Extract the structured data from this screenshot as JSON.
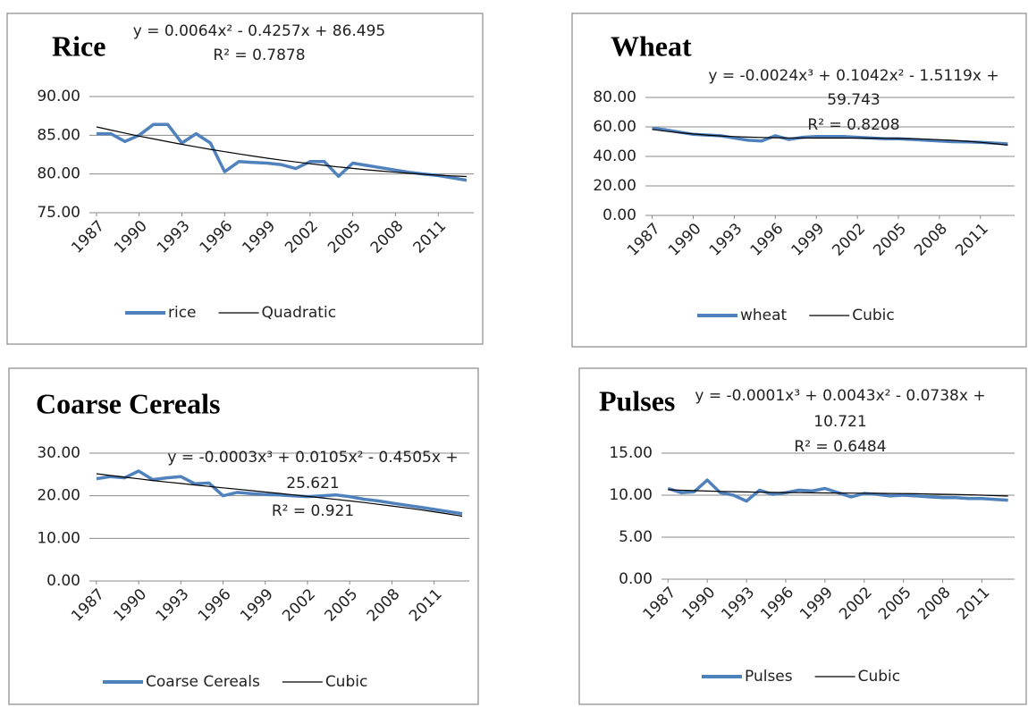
{
  "chart_data": [
    {
      "type": "line",
      "title": "Rice",
      "annotations": [
        "y = 0.0064x² - 0.4257x + 86.495",
        "R² = 0.7878"
      ],
      "x": [
        1987,
        1988,
        1989,
        1990,
        1991,
        1992,
        1993,
        1994,
        1995,
        1996,
        1997,
        1998,
        1999,
        2000,
        2001,
        2002,
        2003,
        2004,
        2005,
        2006,
        2007,
        2008,
        2009,
        2010,
        2011,
        2012,
        2013
      ],
      "xlim": [
        1986.5,
        2013.5
      ],
      "xticks": [
        1987,
        1990,
        1993,
        1996,
        1999,
        2002,
        2005,
        2008,
        2011
      ],
      "ylim": [
        75,
        90
      ],
      "yticks": [
        {
          "value": 75,
          "label": "75.00"
        },
        {
          "value": 80,
          "label": "80.00"
        },
        {
          "value": 85,
          "label": "85.00"
        },
        {
          "value": 90,
          "label": "90.00"
        }
      ],
      "grid": true,
      "series": [
        {
          "name": "rice",
          "color": "#4f81bd",
          "values": [
            85.2,
            85.2,
            84.2,
            85.0,
            86.4,
            86.4,
            84.0,
            85.2,
            84.0,
            80.3,
            81.6,
            81.5,
            81.4,
            81.2,
            80.7,
            81.6,
            81.6,
            79.7,
            81.4,
            81.1,
            80.8,
            80.5,
            80.2,
            80.0,
            79.8,
            79.5,
            79.2
          ]
        },
        {
          "name": "Quadratic",
          "color": "#000000",
          "values": [
            86.08,
            85.67,
            85.28,
            84.89,
            84.53,
            84.17,
            83.83,
            83.5,
            83.18,
            82.88,
            82.59,
            82.31,
            82.04,
            81.79,
            81.55,
            81.32,
            81.11,
            80.91,
            80.72,
            80.54,
            80.38,
            80.23,
            80.09,
            79.96,
            79.85,
            79.75,
            79.67
          ]
        }
      ]
    },
    {
      "type": "line",
      "title": "Wheat",
      "annotations": [
        "y = -0.0024x³ + 0.1042x² - 1.5119x +",
        "59.743",
        "R² = 0.8208"
      ],
      "x": [
        1987,
        1988,
        1989,
        1990,
        1991,
        1992,
        1993,
        1994,
        1995,
        1996,
        1997,
        1998,
        1999,
        2000,
        2001,
        2002,
        2003,
        2004,
        2005,
        2006,
        2007,
        2008,
        2009,
        2010,
        2011,
        2012,
        2013
      ],
      "xlim": [
        1986.5,
        2013.5
      ],
      "xticks": [
        1987,
        1990,
        1993,
        1996,
        1999,
        2002,
        2005,
        2008,
        2011
      ],
      "ylim": [
        0,
        80
      ],
      "yticks": [
        {
          "value": 0,
          "label": "0.00"
        },
        {
          "value": 20,
          "label": "20.00"
        },
        {
          "value": 40,
          "label": "40.00"
        },
        {
          "value": 60,
          "label": "60.00"
        },
        {
          "value": 80,
          "label": "80.00"
        }
      ],
      "grid": true,
      "series": [
        {
          "name": "wheat",
          "color": "#4f81bd",
          "values": [
            59,
            58,
            56.5,
            55,
            54.5,
            54,
            52.5,
            51,
            50.5,
            54,
            51.5,
            53,
            53.5,
            53.5,
            53.5,
            53,
            52.5,
            52,
            52,
            51.5,
            51,
            50.5,
            50,
            49.8,
            49.5,
            49,
            48.5
          ]
        },
        {
          "name": "Cubic",
          "color": "#000000",
          "values": [
            58.33,
            57.12,
            56.08,
            55.21,
            54.49,
            53.9,
            53.44,
            53.09,
            52.83,
            52.64,
            52.53,
            52.46,
            52.43,
            52.41,
            52.41,
            52.4,
            52.36,
            52.29,
            52.17,
            51.98,
            51.72,
            51.36,
            50.89,
            50.3,
            49.57,
            48.69,
            47.64
          ]
        }
      ]
    },
    {
      "type": "line",
      "title": "Coarse Cereals",
      "annotations": [
        "y = -0.0003x³ + 0.0105x² - 0.4505x +",
        "25.621",
        "R² = 0.921"
      ],
      "x": [
        1987,
        1988,
        1989,
        1990,
        1991,
        1992,
        1993,
        1994,
        1995,
        1996,
        1997,
        1998,
        1999,
        2000,
        2001,
        2002,
        2003,
        2004,
        2005,
        2006,
        2007,
        2008,
        2009,
        2010,
        2011,
        2012,
        2013
      ],
      "xlim": [
        1986.5,
        2013.5
      ],
      "xticks": [
        1987,
        1990,
        1993,
        1996,
        1999,
        2002,
        2005,
        2008,
        2011
      ],
      "ylim": [
        0,
        30
      ],
      "yticks": [
        {
          "value": 0,
          "label": "0.00"
        },
        {
          "value": 10,
          "label": "10.00"
        },
        {
          "value": 20,
          "label": "20.00"
        },
        {
          "value": 30,
          "label": "30.00"
        }
      ],
      "grid": true,
      "series": [
        {
          "name": "Coarse Cereals",
          "color": "#4f81bd",
          "values": [
            24,
            24.5,
            24.2,
            25.8,
            23.8,
            24.2,
            24.5,
            22.8,
            23,
            20,
            20.8,
            20.5,
            20.3,
            20.2,
            20,
            19.8,
            20,
            20.2,
            19.8,
            19.2,
            18.8,
            18.3,
            17.8,
            17.3,
            16.8,
            16.3,
            15.8
          ]
        },
        {
          "name": "Cubic",
          "color": "#000000",
          "values": [
            25.18,
            24.76,
            24.36,
            23.97,
            23.59,
            23.23,
            22.88,
            22.54,
            22.2,
            21.87,
            21.54,
            21.21,
            20.88,
            20.55,
            20.21,
            19.87,
            19.52,
            19.16,
            18.79,
            18.41,
            18.01,
            17.6,
            17.16,
            16.71,
            16.23,
            15.73,
            15.21
          ]
        }
      ]
    },
    {
      "type": "line",
      "title": "Pulses",
      "annotations": [
        "y = -0.0001x³ + 0.0043x² - 0.0738x +",
        "10.721",
        "R² = 0.6484"
      ],
      "x": [
        1987,
        1988,
        1989,
        1990,
        1991,
        1992,
        1993,
        1994,
        1995,
        1996,
        1997,
        1998,
        1999,
        2000,
        2001,
        2002,
        2003,
        2004,
        2005,
        2006,
        2007,
        2008,
        2009,
        2010,
        2011,
        2012,
        2013
      ],
      "xlim": [
        1986.5,
        2013.5
      ],
      "xticks": [
        1987,
        1990,
        1993,
        1996,
        1999,
        2002,
        2005,
        2008,
        2011
      ],
      "ylim": [
        0,
        15
      ],
      "yticks": [
        {
          "value": 0,
          "label": "0.00"
        },
        {
          "value": 5,
          "label": "5.00"
        },
        {
          "value": 10,
          "label": "10.00"
        },
        {
          "value": 15,
          "label": "15.00"
        }
      ],
      "grid": true,
      "series": [
        {
          "name": "Pulses",
          "color": "#4f81bd",
          "values": [
            10.8,
            10.3,
            10.4,
            11.8,
            10.3,
            10.0,
            9.3,
            10.6,
            10.1,
            10.3,
            10.6,
            10.5,
            10.8,
            10.3,
            9.8,
            10.2,
            10.1,
            9.9,
            10.0,
            9.9,
            9.8,
            9.7,
            9.7,
            9.6,
            9.6,
            9.5,
            9.4
          ]
        },
        {
          "name": "Cubic",
          "color": "#000000",
          "values": [
            10.65,
            10.59,
            10.54,
            10.49,
            10.45,
            10.42,
            10.38,
            10.35,
            10.33,
            10.31,
            10.3,
            10.28,
            10.27,
            10.25,
            10.24,
            10.23,
            10.22,
            10.2,
            10.19,
            10.17,
            10.14,
            10.11,
            10.08,
            10.04,
            10.0,
            9.95,
            9.89
          ]
        }
      ]
    }
  ]
}
